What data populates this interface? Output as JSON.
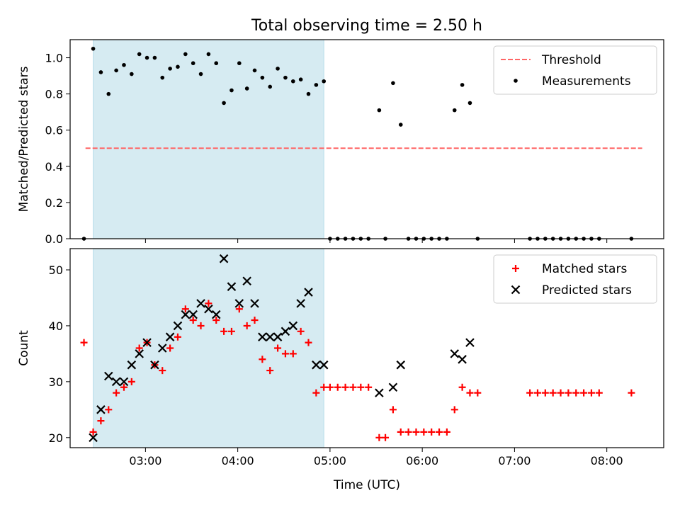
{
  "title": "Total observing time = 2.50 h",
  "colors": {
    "shade": "#add8e6",
    "threshold": "#ff6666",
    "measurement": "#000000",
    "matched": "#ff0000",
    "predicted": "#000000"
  },
  "chart_data": [
    {
      "type": "scatter",
      "ylabel": "Matched/Predicted stars",
      "ylim": [
        0,
        1.1
      ],
      "yticks": [
        "0.0",
        "0.2",
        "0.4",
        "0.6",
        "0.8",
        "1.0"
      ],
      "xlim": [
        "02:11",
        "08:37"
      ],
      "shaded_span": [
        "02:26",
        "04:56"
      ],
      "legend_position": "top-right",
      "threshold": {
        "name": "Threshold",
        "y": 0.5,
        "x_range": [
          "02:21",
          "08:23"
        ]
      },
      "series": [
        {
          "name": "Measurements",
          "points": [
            [
              "02:20",
              0.0
            ],
            [
              "02:26",
              1.05
            ],
            [
              "02:31",
              0.92
            ],
            [
              "02:36",
              0.8
            ],
            [
              "02:41",
              0.93
            ],
            [
              "02:46",
              0.96
            ],
            [
              "02:51",
              0.91
            ],
            [
              "02:56",
              1.02
            ],
            [
              "03:01",
              1.0
            ],
            [
              "03:06",
              1.0
            ],
            [
              "03:11",
              0.89
            ],
            [
              "03:16",
              0.94
            ],
            [
              "03:21",
              0.95
            ],
            [
              "03:26",
              1.02
            ],
            [
              "03:31",
              0.97
            ],
            [
              "03:36",
              0.91
            ],
            [
              "03:41",
              1.02
            ],
            [
              "03:46",
              0.97
            ],
            [
              "03:51",
              0.75
            ],
            [
              "03:56",
              0.82
            ],
            [
              "04:01",
              0.97
            ],
            [
              "04:06",
              0.83
            ],
            [
              "04:11",
              0.93
            ],
            [
              "04:16",
              0.89
            ],
            [
              "04:21",
              0.84
            ],
            [
              "04:26",
              0.94
            ],
            [
              "04:31",
              0.89
            ],
            [
              "04:36",
              0.87
            ],
            [
              "04:41",
              0.88
            ],
            [
              "04:46",
              0.8
            ],
            [
              "04:51",
              0.85
            ],
            [
              "04:56",
              0.87
            ],
            [
              "05:00",
              0.0
            ],
            [
              "05:05",
              0.0
            ],
            [
              "05:10",
              0.0
            ],
            [
              "05:15",
              0.0
            ],
            [
              "05:20",
              0.0
            ],
            [
              "05:25",
              0.0
            ],
            [
              "05:32",
              0.71
            ],
            [
              "05:36",
              0.0
            ],
            [
              "05:41",
              0.86
            ],
            [
              "05:46",
              0.63
            ],
            [
              "05:51",
              0.0
            ],
            [
              "05:56",
              0.0
            ],
            [
              "06:01",
              0.0
            ],
            [
              "06:06",
              0.0
            ],
            [
              "06:11",
              0.0
            ],
            [
              "06:16",
              0.0
            ],
            [
              "06:21",
              0.71
            ],
            [
              "06:26",
              0.85
            ],
            [
              "06:31",
              0.75
            ],
            [
              "06:36",
              0.0
            ],
            [
              "07:10",
              0.0
            ],
            [
              "07:15",
              0.0
            ],
            [
              "07:20",
              0.0
            ],
            [
              "07:25",
              0.0
            ],
            [
              "07:30",
              0.0
            ],
            [
              "07:35",
              0.0
            ],
            [
              "07:40",
              0.0
            ],
            [
              "07:45",
              0.0
            ],
            [
              "07:50",
              0.0
            ],
            [
              "07:55",
              0.0
            ],
            [
              "08:16",
              0.0
            ]
          ]
        }
      ]
    },
    {
      "type": "scatter",
      "ylabel": "Count",
      "xlabel": "Time (UTC)",
      "ylim": [
        18.2,
        53.8
      ],
      "yticks": [
        "20",
        "30",
        "40",
        "50"
      ],
      "xlim": [
        "02:11",
        "08:37"
      ],
      "xticks": [
        "03:00",
        "04:00",
        "05:00",
        "06:00",
        "07:00",
        "08:00"
      ],
      "shaded_span": [
        "02:26",
        "04:56"
      ],
      "legend_position": "top-right",
      "series": [
        {
          "name": "Matched stars",
          "marker": "plus",
          "points": [
            [
              "02:20",
              37
            ],
            [
              "02:26",
              21
            ],
            [
              "02:31",
              23
            ],
            [
              "02:36",
              25
            ],
            [
              "02:41",
              28
            ],
            [
              "02:46",
              29
            ],
            [
              "02:51",
              30
            ],
            [
              "02:56",
              36
            ],
            [
              "03:01",
              37
            ],
            [
              "03:06",
              33
            ],
            [
              "03:11",
              32
            ],
            [
              "03:16",
              36
            ],
            [
              "03:21",
              38
            ],
            [
              "03:26",
              43
            ],
            [
              "03:31",
              41
            ],
            [
              "03:36",
              40
            ],
            [
              "03:41",
              44
            ],
            [
              "03:46",
              41
            ],
            [
              "03:51",
              39
            ],
            [
              "03:56",
              39
            ],
            [
              "04:01",
              43
            ],
            [
              "04:06",
              40
            ],
            [
              "04:11",
              41
            ],
            [
              "04:16",
              34
            ],
            [
              "04:21",
              32
            ],
            [
              "04:26",
              36
            ],
            [
              "04:31",
              35
            ],
            [
              "04:36",
              35
            ],
            [
              "04:41",
              39
            ],
            [
              "04:46",
              37
            ],
            [
              "04:51",
              28
            ],
            [
              "04:56",
              29
            ],
            [
              "05:00",
              29
            ],
            [
              "05:05",
              29
            ],
            [
              "05:10",
              29
            ],
            [
              "05:15",
              29
            ],
            [
              "05:20",
              29
            ],
            [
              "05:25",
              29
            ],
            [
              "05:32",
              20
            ],
            [
              "05:36",
              20
            ],
            [
              "05:41",
              25
            ],
            [
              "05:46",
              21
            ],
            [
              "05:51",
              21
            ],
            [
              "05:56",
              21
            ],
            [
              "06:01",
              21
            ],
            [
              "06:06",
              21
            ],
            [
              "06:11",
              21
            ],
            [
              "06:16",
              21
            ],
            [
              "06:21",
              25
            ],
            [
              "06:26",
              29
            ],
            [
              "06:31",
              28
            ],
            [
              "06:36",
              28
            ],
            [
              "07:10",
              28
            ],
            [
              "07:15",
              28
            ],
            [
              "07:20",
              28
            ],
            [
              "07:25",
              28
            ],
            [
              "07:30",
              28
            ],
            [
              "07:35",
              28
            ],
            [
              "07:40",
              28
            ],
            [
              "07:45",
              28
            ],
            [
              "07:50",
              28
            ],
            [
              "07:55",
              28
            ],
            [
              "08:16",
              28
            ]
          ]
        },
        {
          "name": "Predicted stars",
          "marker": "x",
          "points": [
            [
              "02:26",
              20
            ],
            [
              "02:31",
              25
            ],
            [
              "02:36",
              31
            ],
            [
              "02:41",
              30
            ],
            [
              "02:46",
              30
            ],
            [
              "02:51",
              33
            ],
            [
              "02:56",
              35
            ],
            [
              "03:01",
              37
            ],
            [
              "03:06",
              33
            ],
            [
              "03:11",
              36
            ],
            [
              "03:16",
              38
            ],
            [
              "03:21",
              40
            ],
            [
              "03:26",
              42
            ],
            [
              "03:31",
              42
            ],
            [
              "03:36",
              44
            ],
            [
              "03:41",
              43
            ],
            [
              "03:46",
              42
            ],
            [
              "03:51",
              52
            ],
            [
              "03:56",
              47
            ],
            [
              "04:01",
              44
            ],
            [
              "04:06",
              48
            ],
            [
              "04:11",
              44
            ],
            [
              "04:16",
              38
            ],
            [
              "04:21",
              38
            ],
            [
              "04:26",
              38
            ],
            [
              "04:31",
              39
            ],
            [
              "04:36",
              40
            ],
            [
              "04:41",
              44
            ],
            [
              "04:46",
              46
            ],
            [
              "04:51",
              33
            ],
            [
              "04:56",
              33
            ],
            [
              "05:32",
              28
            ],
            [
              "05:41",
              29
            ],
            [
              "05:46",
              33
            ],
            [
              "06:21",
              35
            ],
            [
              "06:26",
              34
            ],
            [
              "06:31",
              37
            ]
          ]
        }
      ]
    }
  ]
}
